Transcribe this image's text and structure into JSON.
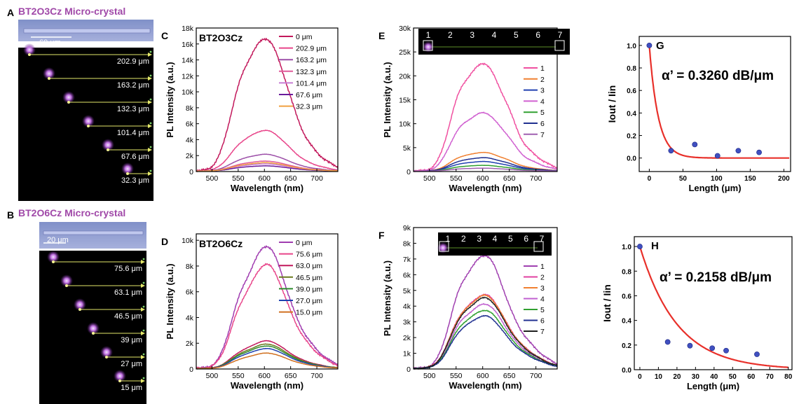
{
  "panels_left": [
    {
      "letter": "A",
      "title": "BT2O3Cz Micro-crystal",
      "scale": "60 μm",
      "distances": [
        "202.9 μm",
        "163.2 μm",
        "132.3 μm",
        "101.4 μm",
        "67.6 μm",
        "32.3 μm"
      ]
    },
    {
      "letter": "B",
      "title": "BT2O6Cz Micro-crystal",
      "scale": "20 μm",
      "distances": [
        "75.6 μm",
        "63.1 μm",
        "46.5 μm",
        "39 μm",
        "27 μm",
        "15 μm"
      ]
    }
  ],
  "colors": {
    "title_purple": "#a048a8",
    "legend_C": [
      "#c2185b",
      "#e8458a",
      "#9c4fa8",
      "#e05a9a",
      "#c77dd4",
      "#6a1b9a",
      "#f0a040"
    ],
    "legend_D": [
      "#a03cb0",
      "#e8458a",
      "#c2185b",
      "#6b7a1e",
      "#2e8b2e",
      "#1e40b0",
      "#d07020"
    ],
    "legend_E": [
      "#f050a0",
      "#f08030",
      "#2040b0",
      "#d060d0",
      "#30a030",
      "#203090",
      "#a060b0"
    ],
    "legend_F": [
      "#a040b0",
      "#e040a0",
      "#f08030",
      "#c060d0",
      "#30a030",
      "#203090",
      "#202020"
    ],
    "fit_red": "#e8302a",
    "dot_blue": "#4050c0"
  },
  "image_strip_numbers": [
    "1",
    "2",
    "3",
    "4",
    "5",
    "6",
    "7"
  ],
  "chart_data": [
    {
      "id": "C",
      "type": "line",
      "letter": "C",
      "title": "BT2O3Cz",
      "xlabel": "Wavelength (nm)",
      "ylabel": "PL Intensity (a.u.)",
      "xlim": [
        470,
        740
      ],
      "ylim": [
        0,
        18000
      ],
      "xticks": [
        500,
        550,
        600,
        650,
        700
      ],
      "yticks": [
        0,
        2000,
        4000,
        6000,
        8000,
        10000,
        12000,
        14000,
        16000,
        18000
      ],
      "ytick_labels": [
        "0",
        "2k",
        "4k",
        "6k",
        "8k",
        "10k",
        "12k",
        "14k",
        "16k",
        "18k"
      ],
      "legend": "top-right",
      "series": [
        {
          "name": "0 μm",
          "peak": 16600
        },
        {
          "name": "202.9 μm",
          "peak": 5100
        },
        {
          "name": "163.2 μm",
          "peak": 2100
        },
        {
          "name": "132.3 μm",
          "peak": 1250
        },
        {
          "name": "101.4 μm",
          "peak": 900
        },
        {
          "name": "67.6 μm",
          "peak": 650
        },
        {
          "name": "32.3 μm",
          "peak": 1050
        }
      ]
    },
    {
      "id": "D",
      "type": "line",
      "letter": "D",
      "title": "BT2O6Cz",
      "xlabel": "Wavelength (nm)",
      "ylabel": "PL Intensity (a.u.)",
      "xlim": [
        470,
        740
      ],
      "ylim": [
        0,
        10500
      ],
      "xticks": [
        500,
        550,
        600,
        650,
        700
      ],
      "yticks": [
        0,
        2000,
        4000,
        6000,
        8000,
        10000
      ],
      "ytick_labels": [
        "0",
        "2k",
        "4k",
        "6k",
        "8k",
        "10k"
      ],
      "legend": "top-right",
      "series": [
        {
          "name": "0 μm",
          "peak": 9500
        },
        {
          "name": "75.6 μm",
          "peak": 8100
        },
        {
          "name": "63.0 μm",
          "peak": 2150
        },
        {
          "name": "46.5 μm",
          "peak": 1900
        },
        {
          "name": "39.0 μm",
          "peak": 1750
        },
        {
          "name": "27.0 μm",
          "peak": 1550
        },
        {
          "name": "15.0 μm",
          "peak": 1200
        }
      ]
    },
    {
      "id": "E",
      "type": "line",
      "letter": "E",
      "xlabel": "Wavelength (nm)",
      "ylabel": "PL Intensity (a.u.)",
      "xlim": [
        470,
        740
      ],
      "ylim": [
        0,
        30000
      ],
      "xticks": [
        500,
        550,
        600,
        650,
        700
      ],
      "yticks": [
        0,
        5000,
        10000,
        15000,
        20000,
        25000,
        30000
      ],
      "ytick_labels": [
        "0",
        "5k",
        "10k",
        "15k",
        "20k",
        "25k",
        "30k"
      ],
      "legend": "right",
      "series": [
        {
          "name": "1",
          "peak": 22500
        },
        {
          "name": "2",
          "peak": 3900
        },
        {
          "name": "3",
          "peak": 2000
        },
        {
          "name": "4",
          "peak": 12200
        },
        {
          "name": "5",
          "peak": 1200
        },
        {
          "name": "6",
          "peak": 2800
        },
        {
          "name": "7",
          "peak": 600
        }
      ]
    },
    {
      "id": "F",
      "type": "line",
      "letter": "F",
      "xlabel": "Wavelength (nm)",
      "ylabel": "PL Intensity (a.u.)",
      "xlim": [
        470,
        740
      ],
      "ylim": [
        0,
        9000
      ],
      "xticks": [
        500,
        550,
        600,
        650,
        700
      ],
      "yticks": [
        0,
        1000,
        2000,
        3000,
        4000,
        5000,
        6000,
        7000,
        8000,
        9000
      ],
      "ytick_labels": [
        "0",
        "1k",
        "2k",
        "3k",
        "4k",
        "5k",
        "6k",
        "7k",
        "8k",
        "9k"
      ],
      "legend": "right",
      "series": [
        {
          "name": "1",
          "peak": 7200
        },
        {
          "name": "2",
          "peak": 4700
        },
        {
          "name": "3",
          "peak": 4650
        },
        {
          "name": "4",
          "peak": 4100
        },
        {
          "name": "5",
          "peak": 3700
        },
        {
          "name": "6",
          "peak": 3350
        },
        {
          "name": "7",
          "peak": 4500
        }
      ]
    },
    {
      "id": "G",
      "type": "scatter",
      "letter": "G",
      "annotation": "α’ = 0.3260 dB/μm",
      "xlabel": "Length (μm)",
      "ylabel": "Iout / Iin",
      "xlim": [
        -15,
        210
      ],
      "ylim": [
        -0.12,
        1.08
      ],
      "xticks": [
        0,
        50,
        100,
        150,
        200
      ],
      "yticks": [
        0.0,
        0.2,
        0.4,
        0.6,
        0.8,
        1.0
      ],
      "ytick_labels": [
        "0.0",
        "0.2",
        "0.4",
        "0.6",
        "0.8",
        "1.0"
      ],
      "points": {
        "x": [
          0,
          32.3,
          67.6,
          101.4,
          132.3,
          163.2
        ],
        "y": [
          1.0,
          0.065,
          0.12,
          0.02,
          0.065,
          0.05
        ]
      },
      "fit": {
        "type": "exponential",
        "decay_per_um": 0.075
      }
    },
    {
      "id": "H",
      "type": "scatter",
      "letter": "H",
      "annotation": "α’ = 0.2158 dB/μm",
      "xlabel": "Length (μm)",
      "ylabel": "Iout / Iin",
      "xlim": [
        -3,
        82
      ],
      "ylim": [
        0,
        1.08
      ],
      "xticks": [
        0,
        10,
        20,
        30,
        40,
        50,
        60,
        70,
        80
      ],
      "yticks": [
        0.0,
        0.2,
        0.4,
        0.6,
        0.8,
        1.0
      ],
      "ytick_labels": [
        "0.0",
        "0.2",
        "0.4",
        "0.6",
        "0.8",
        "1.0"
      ],
      "points": {
        "x": [
          0,
          15,
          27,
          39,
          46.5,
          63.1
        ],
        "y": [
          1.0,
          0.225,
          0.195,
          0.175,
          0.155,
          0.125
        ]
      },
      "fit": {
        "type": "exponential",
        "decay_per_um": 0.0497
      }
    }
  ]
}
